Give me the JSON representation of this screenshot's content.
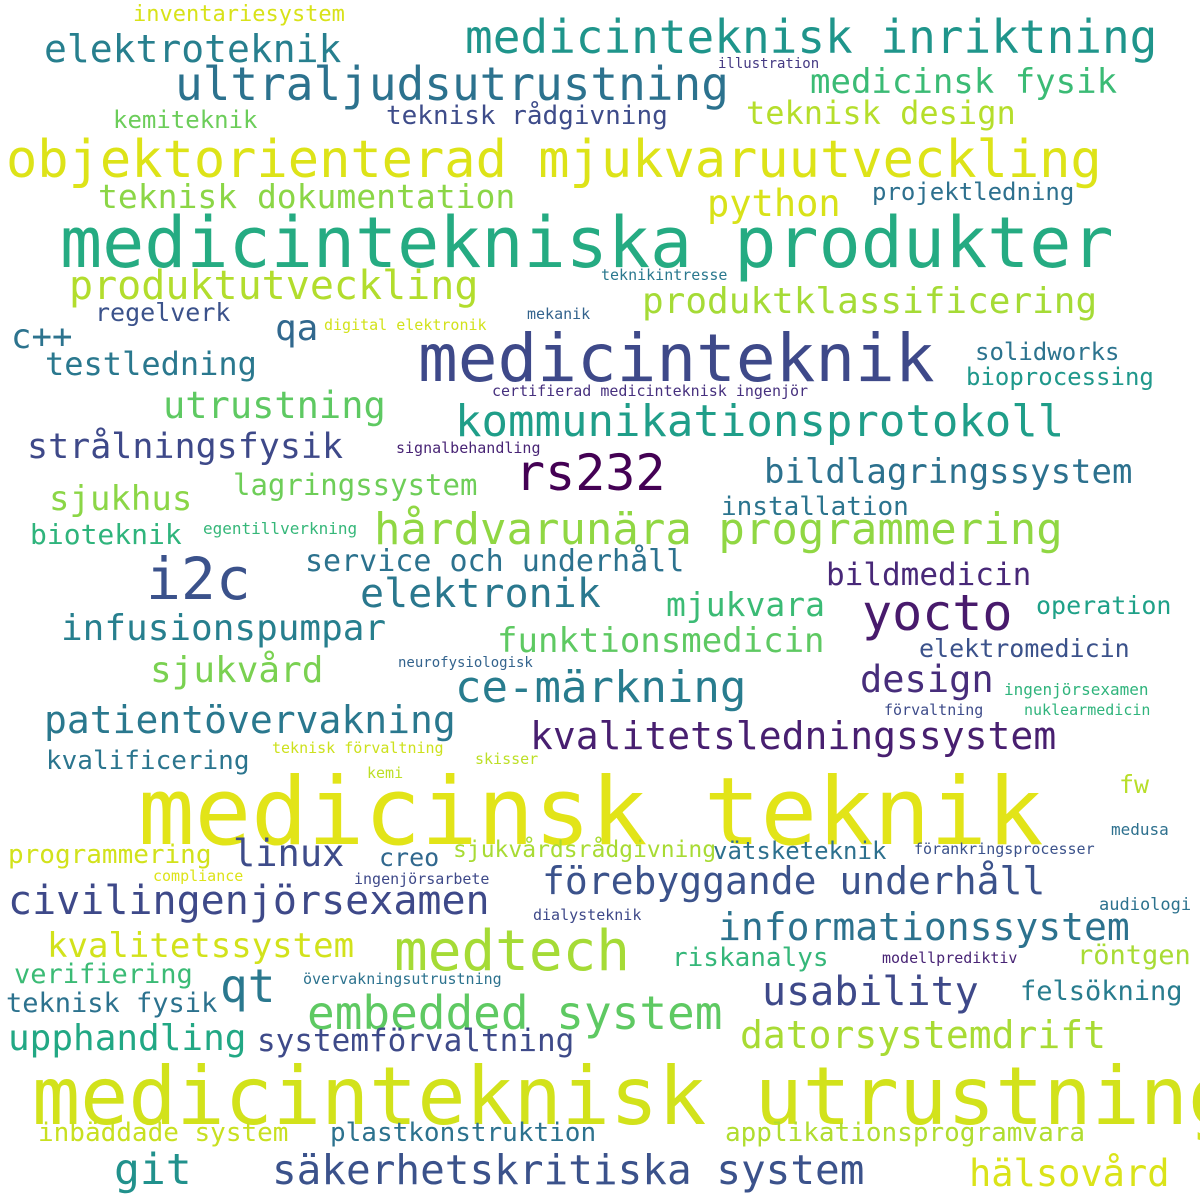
{
  "words": [
    {
      "text": "medicinsk teknik",
      "color": "#e2e418"
    },
    {
      "text": "medicinteknisk utrustning",
      "color": "#d2e21b"
    },
    {
      "text": "medicintekniska produkter",
      "color": "#25ab82"
    },
    {
      "text": "objektorienterad mjukvaruutveckling",
      "color": "#dde318"
    },
    {
      "text": "medicinteknik",
      "color": "#3e4989"
    },
    {
      "text": "medicinteknisk inriktning",
      "color": "#1f958b"
    },
    {
      "text": "ultraljudsutrustning",
      "color": "#2c728e"
    },
    {
      "text": "elektroteknik",
      "color": "#277f8e"
    },
    {
      "text": "medicinsk fysik",
      "color": "#3bbb75"
    },
    {
      "text": "inventariesystem",
      "color": "#d8e219"
    },
    {
      "text": "illustration",
      "color": "#443983"
    },
    {
      "text": "kemiteknik",
      "color": "#6ccd5a"
    },
    {
      "text": "teknisk rådgivning",
      "color": "#3e4c8a"
    },
    {
      "text": "teknisk design",
      "color": "#b5de2b"
    },
    {
      "text": "teknisk dokumentation",
      "color": "#8bd646"
    },
    {
      "text": "python",
      "color": "#d8e219"
    },
    {
      "text": "projektledning",
      "color": "#2d708e"
    },
    {
      "text": "teknikintresse",
      "color": "#2a788e"
    },
    {
      "text": "produktutveckling",
      "color": "#b2dd2d"
    },
    {
      "text": "produktklassificering",
      "color": "#a5db36"
    },
    {
      "text": "c++",
      "color": "#2c738e"
    },
    {
      "text": "regelverk",
      "color": "#3b528b"
    },
    {
      "text": "qa",
      "color": "#31688e"
    },
    {
      "text": "digital elektronik",
      "color": "#d2e21b"
    },
    {
      "text": "mekanik",
      "color": "#33638d"
    },
    {
      "text": "testledning",
      "color": "#2a788e"
    },
    {
      "text": "solidworks",
      "color": "#2c738e"
    },
    {
      "text": "bioprocessing",
      "color": "#1f988b"
    },
    {
      "text": "certifierad medicinteknisk ingenjör",
      "color": "#46307e"
    },
    {
      "text": "utrustning",
      "color": "#5ec962"
    },
    {
      "text": "kommunikationsprotokoll",
      "color": "#1f9e89"
    },
    {
      "text": "strålningsfysik",
      "color": "#3e4989"
    },
    {
      "text": "signalbehandling",
      "color": "#482475"
    },
    {
      "text": "rs232",
      "color": "#440154"
    },
    {
      "text": "bildlagringssystem",
      "color": "#2c718e"
    },
    {
      "text": "sjukhus",
      "color": "#8bd646"
    },
    {
      "text": "lagringssystem",
      "color": "#6ece58"
    },
    {
      "text": "installation",
      "color": "#2b748e"
    },
    {
      "text": "bioteknik",
      "color": "#2fb47c"
    },
    {
      "text": "egentillverkning",
      "color": "#35b779"
    },
    {
      "text": "hårdvarunära programmering",
      "color": "#90d743"
    },
    {
      "text": "i2c",
      "color": "#3b528b"
    },
    {
      "text": "service och underhåll",
      "color": "#2c728e"
    },
    {
      "text": "bildmedicin",
      "color": "#482878"
    },
    {
      "text": "elektronik",
      "color": "#2a788e"
    },
    {
      "text": "yocto",
      "color": "#481a6c"
    },
    {
      "text": "mjukvara",
      "color": "#3bbb75"
    },
    {
      "text": "operation",
      "color": "#1fa188"
    },
    {
      "text": "infusionspumpar",
      "color": "#277f8e"
    },
    {
      "text": "funktionsmedicin",
      "color": "#5ec962"
    },
    {
      "text": "elektromedicin",
      "color": "#3b528b"
    },
    {
      "text": "sjukvård",
      "color": "#7ad151"
    },
    {
      "text": "neurofysiologisk",
      "color": "#33638d"
    },
    {
      "text": "ce-märkning",
      "color": "#287c8e"
    },
    {
      "text": "design",
      "color": "#472d7b"
    },
    {
      "text": "ingenjörsexamen",
      "color": "#2fb47c"
    },
    {
      "text": "förvaltning",
      "color": "#3e4c8a"
    },
    {
      "text": "nuklearmedicin",
      "color": "#2fb47c"
    },
    {
      "text": "patientövervakning",
      "color": "#2a788e"
    },
    {
      "text": "kvalitetsledningssystem",
      "color": "#481f70"
    },
    {
      "text": "teknisk förvaltning",
      "color": "#cde11d"
    },
    {
      "text": "kvalificering",
      "color": "#2b758e"
    },
    {
      "text": "kemi",
      "color": "#bddf26"
    },
    {
      "text": "skisser",
      "color": "#bddf26"
    },
    {
      "text": "fw",
      "color": "#b8de29"
    },
    {
      "text": "programmering",
      "color": "#d2e21b"
    },
    {
      "text": "linux",
      "color": "#3e4c8a"
    },
    {
      "text": "creo",
      "color": "#31688e"
    },
    {
      "text": "sjukvårdsrådgivning",
      "color": "#a8db34"
    },
    {
      "text": "vätsketeknik",
      "color": "#2d708e"
    },
    {
      "text": "förankringsprocesser",
      "color": "#3b528b"
    },
    {
      "text": "medusa",
      "color": "#2d708e"
    },
    {
      "text": "compliance",
      "color": "#dde318"
    },
    {
      "text": "ingenjörsarbete",
      "color": "#3e4989"
    },
    {
      "text": "förebyggande underhåll",
      "color": "#3b528b"
    },
    {
      "text": "civilingenjörsexamen",
      "color": "#3e4989"
    },
    {
      "text": "informationssystem",
      "color": "#2c728e"
    },
    {
      "text": "dialysteknik",
      "color": "#3e4989"
    },
    {
      "text": "audiologi",
      "color": "#2c728e"
    },
    {
      "text": "kvalitetssystem",
      "color": "#d2e21b"
    },
    {
      "text": "medtech",
      "color": "#a5db36"
    },
    {
      "text": "verifiering",
      "color": "#3bbb75"
    },
    {
      "text": "riskanalys",
      "color": "#35b779"
    },
    {
      "text": "modellprediktiv",
      "color": "#482475"
    },
    {
      "text": "röntgen",
      "color": "#a8db34"
    },
    {
      "text": "qt",
      "color": "#2a788e"
    },
    {
      "text": "övervakningsutrustning",
      "color": "#2c728e"
    },
    {
      "text": "teknisk fysik",
      "color": "#2c728e"
    },
    {
      "text": "usability",
      "color": "#3e4989"
    },
    {
      "text": "felsökning",
      "color": "#287c8e"
    },
    {
      "text": "embedded system",
      "color": "#5ec962"
    },
    {
      "text": "upphandling",
      "color": "#22a884"
    },
    {
      "text": "systemförvaltning",
      "color": "#3e4a89"
    },
    {
      "text": "datorsystemdrift",
      "color": "#a8db34"
    },
    {
      "text": "inbäddade system",
      "color": "#c8e020"
    },
    {
      "text": "plastkonstruktion",
      "color": "#2c728e"
    },
    {
      "text": "applikationsprogramvara",
      "color": "#b0dd2f"
    },
    {
      "text": "git",
      "color": "#21918c"
    },
    {
      "text": "säkerhetskritiska system",
      "color": "#3b528b"
    },
    {
      "text": "hälsovård",
      "color": "#dae319"
    }
  ]
}
